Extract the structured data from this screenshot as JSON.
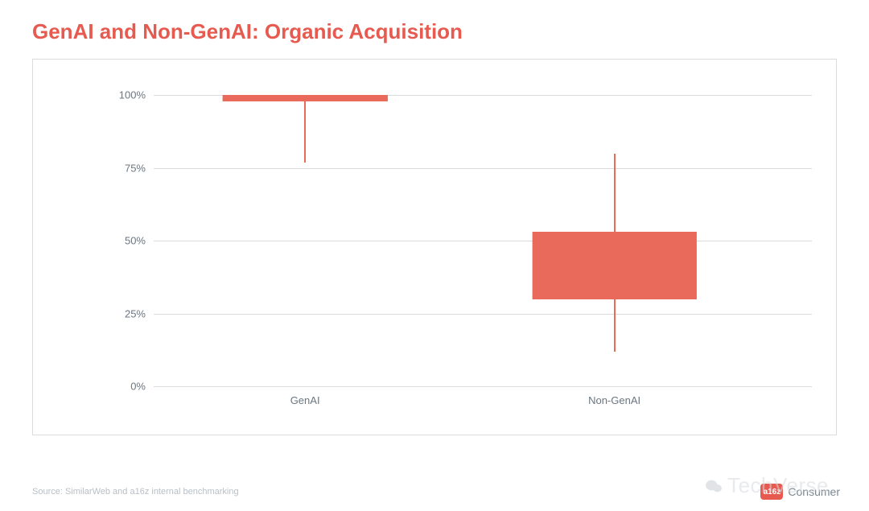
{
  "title": {
    "text": "GenAI and Non-GenAI: Organic Acquisition",
    "color": "#e65a4f",
    "fontsize": 26,
    "fontweight": 700
  },
  "chart": {
    "type": "boxplot",
    "background_color": "#ffffff",
    "frame_border_color": "#d9dcdf",
    "grid_color": "#d9dcdf",
    "axis_label_color": "#6b7680",
    "axis_label_fontsize": 13,
    "ylim": [
      0,
      104
    ],
    "yticks": [
      0,
      25,
      50,
      75,
      100
    ],
    "ytick_labels": [
      "0%",
      "25%",
      "50%",
      "75%",
      "100%"
    ],
    "categories": [
      "GenAI",
      "Non-GenAI"
    ],
    "category_x": [
      23,
      70
    ],
    "box_width_pct": 25,
    "box_fill": "#e9695b",
    "box_stroke": "#e9695b",
    "whisker_color": "#e9695b",
    "median_color": "#e9695b",
    "series": [
      {
        "name": "GenAI",
        "whisker_low": 77,
        "q1": 98,
        "median": 99,
        "q3": 100,
        "whisker_high": 100
      },
      {
        "name": "Non-GenAI",
        "whisker_low": 12,
        "q1": 30,
        "median": 31,
        "q3": 53,
        "whisker_high": 80
      }
    ]
  },
  "source": {
    "text": "Source: SimilarWeb and a16z internal benchmarking",
    "color": "#b8bfc6",
    "fontsize": 11
  },
  "brand": {
    "badge_text": "a16z",
    "badge_bg": "#e65a4f",
    "suffix": "Consumer",
    "text_color": "#7b8790"
  },
  "watermark": {
    "text": "TechVerse",
    "color": "#d6dadf"
  }
}
